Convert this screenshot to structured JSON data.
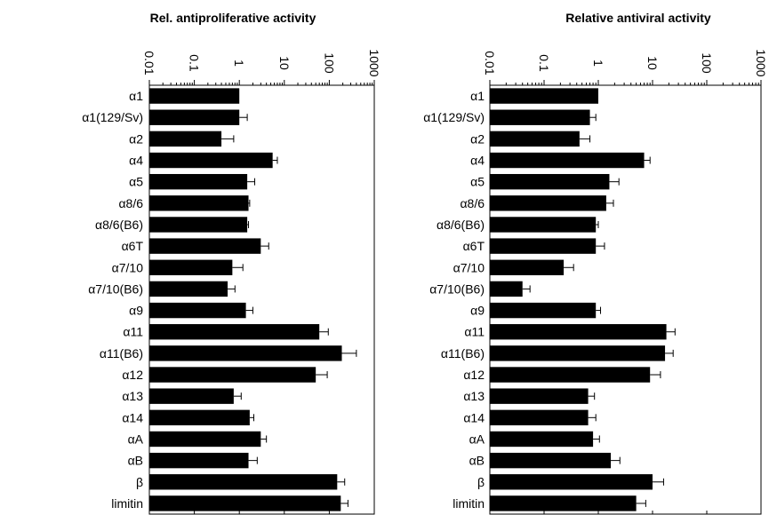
{
  "chart_data": [
    {
      "type": "bar",
      "orientation": "horizontal",
      "title": "Rel. antiproliferative activity",
      "xscale": "log",
      "xlim": [
        0.01,
        1000
      ],
      "tick_labels": [
        "0.01",
        "0.1",
        "1",
        "10",
        "100",
        "1000"
      ],
      "tick_values": [
        0.01,
        0.1,
        1,
        10,
        100,
        1000
      ],
      "categories": [
        "α1",
        "α1(129/Sv)",
        "α2",
        "α4",
        "α5",
        "α8/6",
        "α8/6(B6)",
        "α6T",
        "α7/10",
        "α7/10(B6)",
        "α9",
        "α11",
        "α11(B6)",
        "α12",
        "α13",
        "α14",
        "αA",
        "αB",
        "β",
        "limitin"
      ],
      "values": [
        1.0,
        1.0,
        0.4,
        5.5,
        1.5,
        1.6,
        1.5,
        3.0,
        0.7,
        0.55,
        1.4,
        60,
        190,
        50,
        0.75,
        1.7,
        3.0,
        1.6,
        150,
        180
      ],
      "error_upper": [
        null,
        1.5,
        0.75,
        7.0,
        2.2,
        1.7,
        1.6,
        4.5,
        1.2,
        0.8,
        2.0,
        95,
        400,
        90,
        1.1,
        2.1,
        4.0,
        2.5,
        220,
        260
      ],
      "grid": false
    },
    {
      "type": "bar",
      "orientation": "horizontal",
      "title": "Relative antiviral activity",
      "xscale": "log",
      "xlim": [
        0.01,
        1000
      ],
      "tick_labels": [
        "0.01",
        "0.1",
        "1",
        "10",
        "100",
        "1000"
      ],
      "tick_values": [
        0.01,
        0.1,
        1,
        10,
        100,
        1000
      ],
      "categories": [
        "α1",
        "α1(129/Sv)",
        "α2",
        "α4",
        "α5",
        "α8/6",
        "α8/6(B6)",
        "α6T",
        "α7/10",
        "α7/10(B6)",
        "α9",
        "α11",
        "α11(B6)",
        "α12",
        "α13",
        "α14",
        "αA",
        "αB",
        "β",
        "limitin"
      ],
      "values": [
        1.0,
        0.7,
        0.45,
        7.0,
        1.6,
        1.4,
        0.9,
        0.9,
        0.23,
        0.04,
        0.9,
        18,
        17,
        9,
        0.65,
        0.65,
        0.8,
        1.7,
        10,
        5
      ],
      "error_upper": [
        null,
        0.9,
        0.7,
        9.0,
        2.4,
        1.9,
        1.0,
        1.3,
        0.35,
        0.055,
        1.1,
        26,
        24,
        14,
        0.85,
        0.9,
        1.05,
        2.5,
        16,
        7.5
      ],
      "grid": false
    }
  ]
}
